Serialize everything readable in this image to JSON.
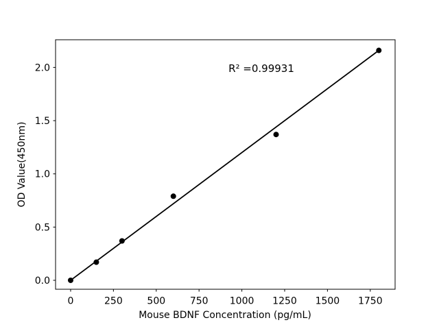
{
  "figure": {
    "background": "#ffffff",
    "foreground": "#000000"
  },
  "chart_data": {
    "type": "scatter",
    "title": "",
    "xlabel": "Mouse BDNF Concentration (pg/mL)",
    "ylabel": "OD Value(450nm)",
    "x": [
      0,
      150,
      300,
      600,
      1200,
      1800
    ],
    "y": [
      0.0,
      0.17,
      0.37,
      0.79,
      1.37,
      2.16
    ],
    "r_squared": 0.99931,
    "annotation": {
      "text": "R² =0.99931"
    },
    "fit_line": {
      "style": "solid",
      "from_first_to_last_point": true
    },
    "xlim": [
      -88,
      1895
    ],
    "ylim": [
      -0.084,
      2.26
    ],
    "xticks": [
      0,
      250,
      500,
      750,
      1000,
      1250,
      1500,
      1750
    ],
    "xtick_labels": [
      "0",
      "250",
      "500",
      "750",
      "1000",
      "1250",
      "1500",
      "1750"
    ],
    "yticks": [
      0.0,
      0.5,
      1.0,
      1.5,
      2.0
    ],
    "ytick_labels": [
      "0.0",
      "0.5",
      "1.0",
      "1.5",
      "2.0"
    ],
    "grid": false,
    "legend": null,
    "marker": {
      "shape": "circle",
      "radius_px": 4,
      "color": "#000000"
    },
    "line_color": "#000000",
    "axis_color": "#000000"
  }
}
